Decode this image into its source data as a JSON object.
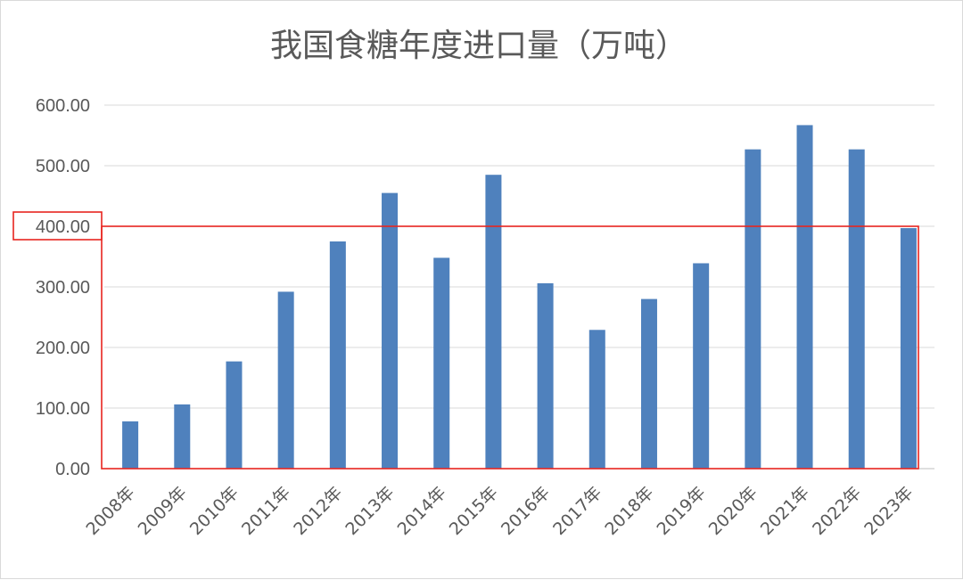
{
  "chart_data": {
    "type": "bar",
    "title": "我国食糖年度进口量（万吨）",
    "xlabel": "",
    "ylabel": "",
    "categories": [
      "2008年",
      "2009年",
      "2010年",
      "2011年",
      "2012年",
      "2013年",
      "2014年",
      "2015年",
      "2016年",
      "2017年",
      "2018年",
      "2019年",
      "2020年",
      "2021年",
      "2022年",
      "2023年"
    ],
    "values": [
      78,
      106,
      177,
      292,
      375,
      455,
      348,
      485,
      306,
      229,
      280,
      339,
      527,
      567,
      527,
      397
    ],
    "ylim": [
      0,
      600
    ],
    "yticks": [
      "0.00",
      "100.00",
      "200.00",
      "300.00",
      "400.00",
      "500.00",
      "600.00"
    ],
    "grid": true,
    "legend": "none",
    "bar_color": "#4f81bd",
    "highlight": {
      "value": 400,
      "label": "400.00",
      "color": "#e8251f"
    }
  }
}
